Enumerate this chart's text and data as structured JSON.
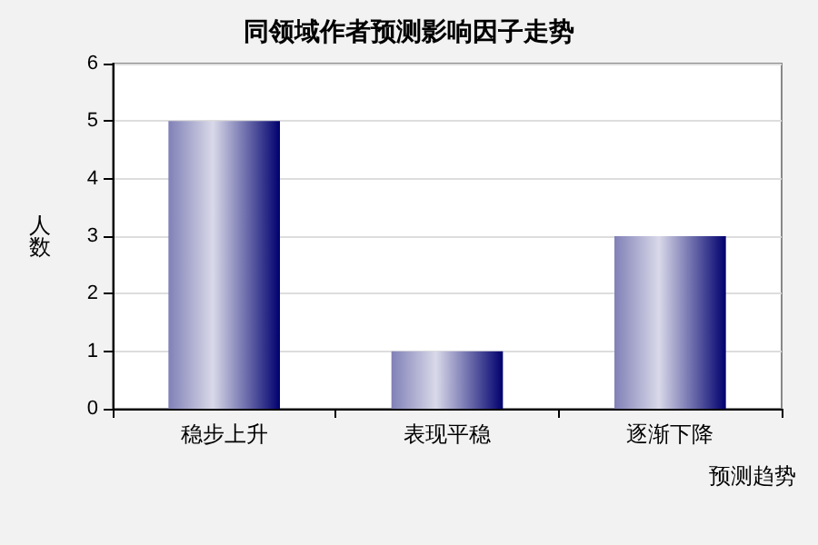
{
  "chart_data": {
    "type": "bar",
    "title": "同领域作者预测影响因子走势",
    "xlabel": "预测趋势",
    "ylabel": "人数",
    "categories": [
      "稳步上升",
      "表现平稳",
      "逐渐下降"
    ],
    "values": [
      5,
      1,
      3
    ],
    "color": "#00006e",
    "ylim": [
      0,
      6
    ],
    "yticks": [
      0,
      1,
      2,
      3,
      4,
      5,
      6
    ],
    "grid": "y"
  }
}
